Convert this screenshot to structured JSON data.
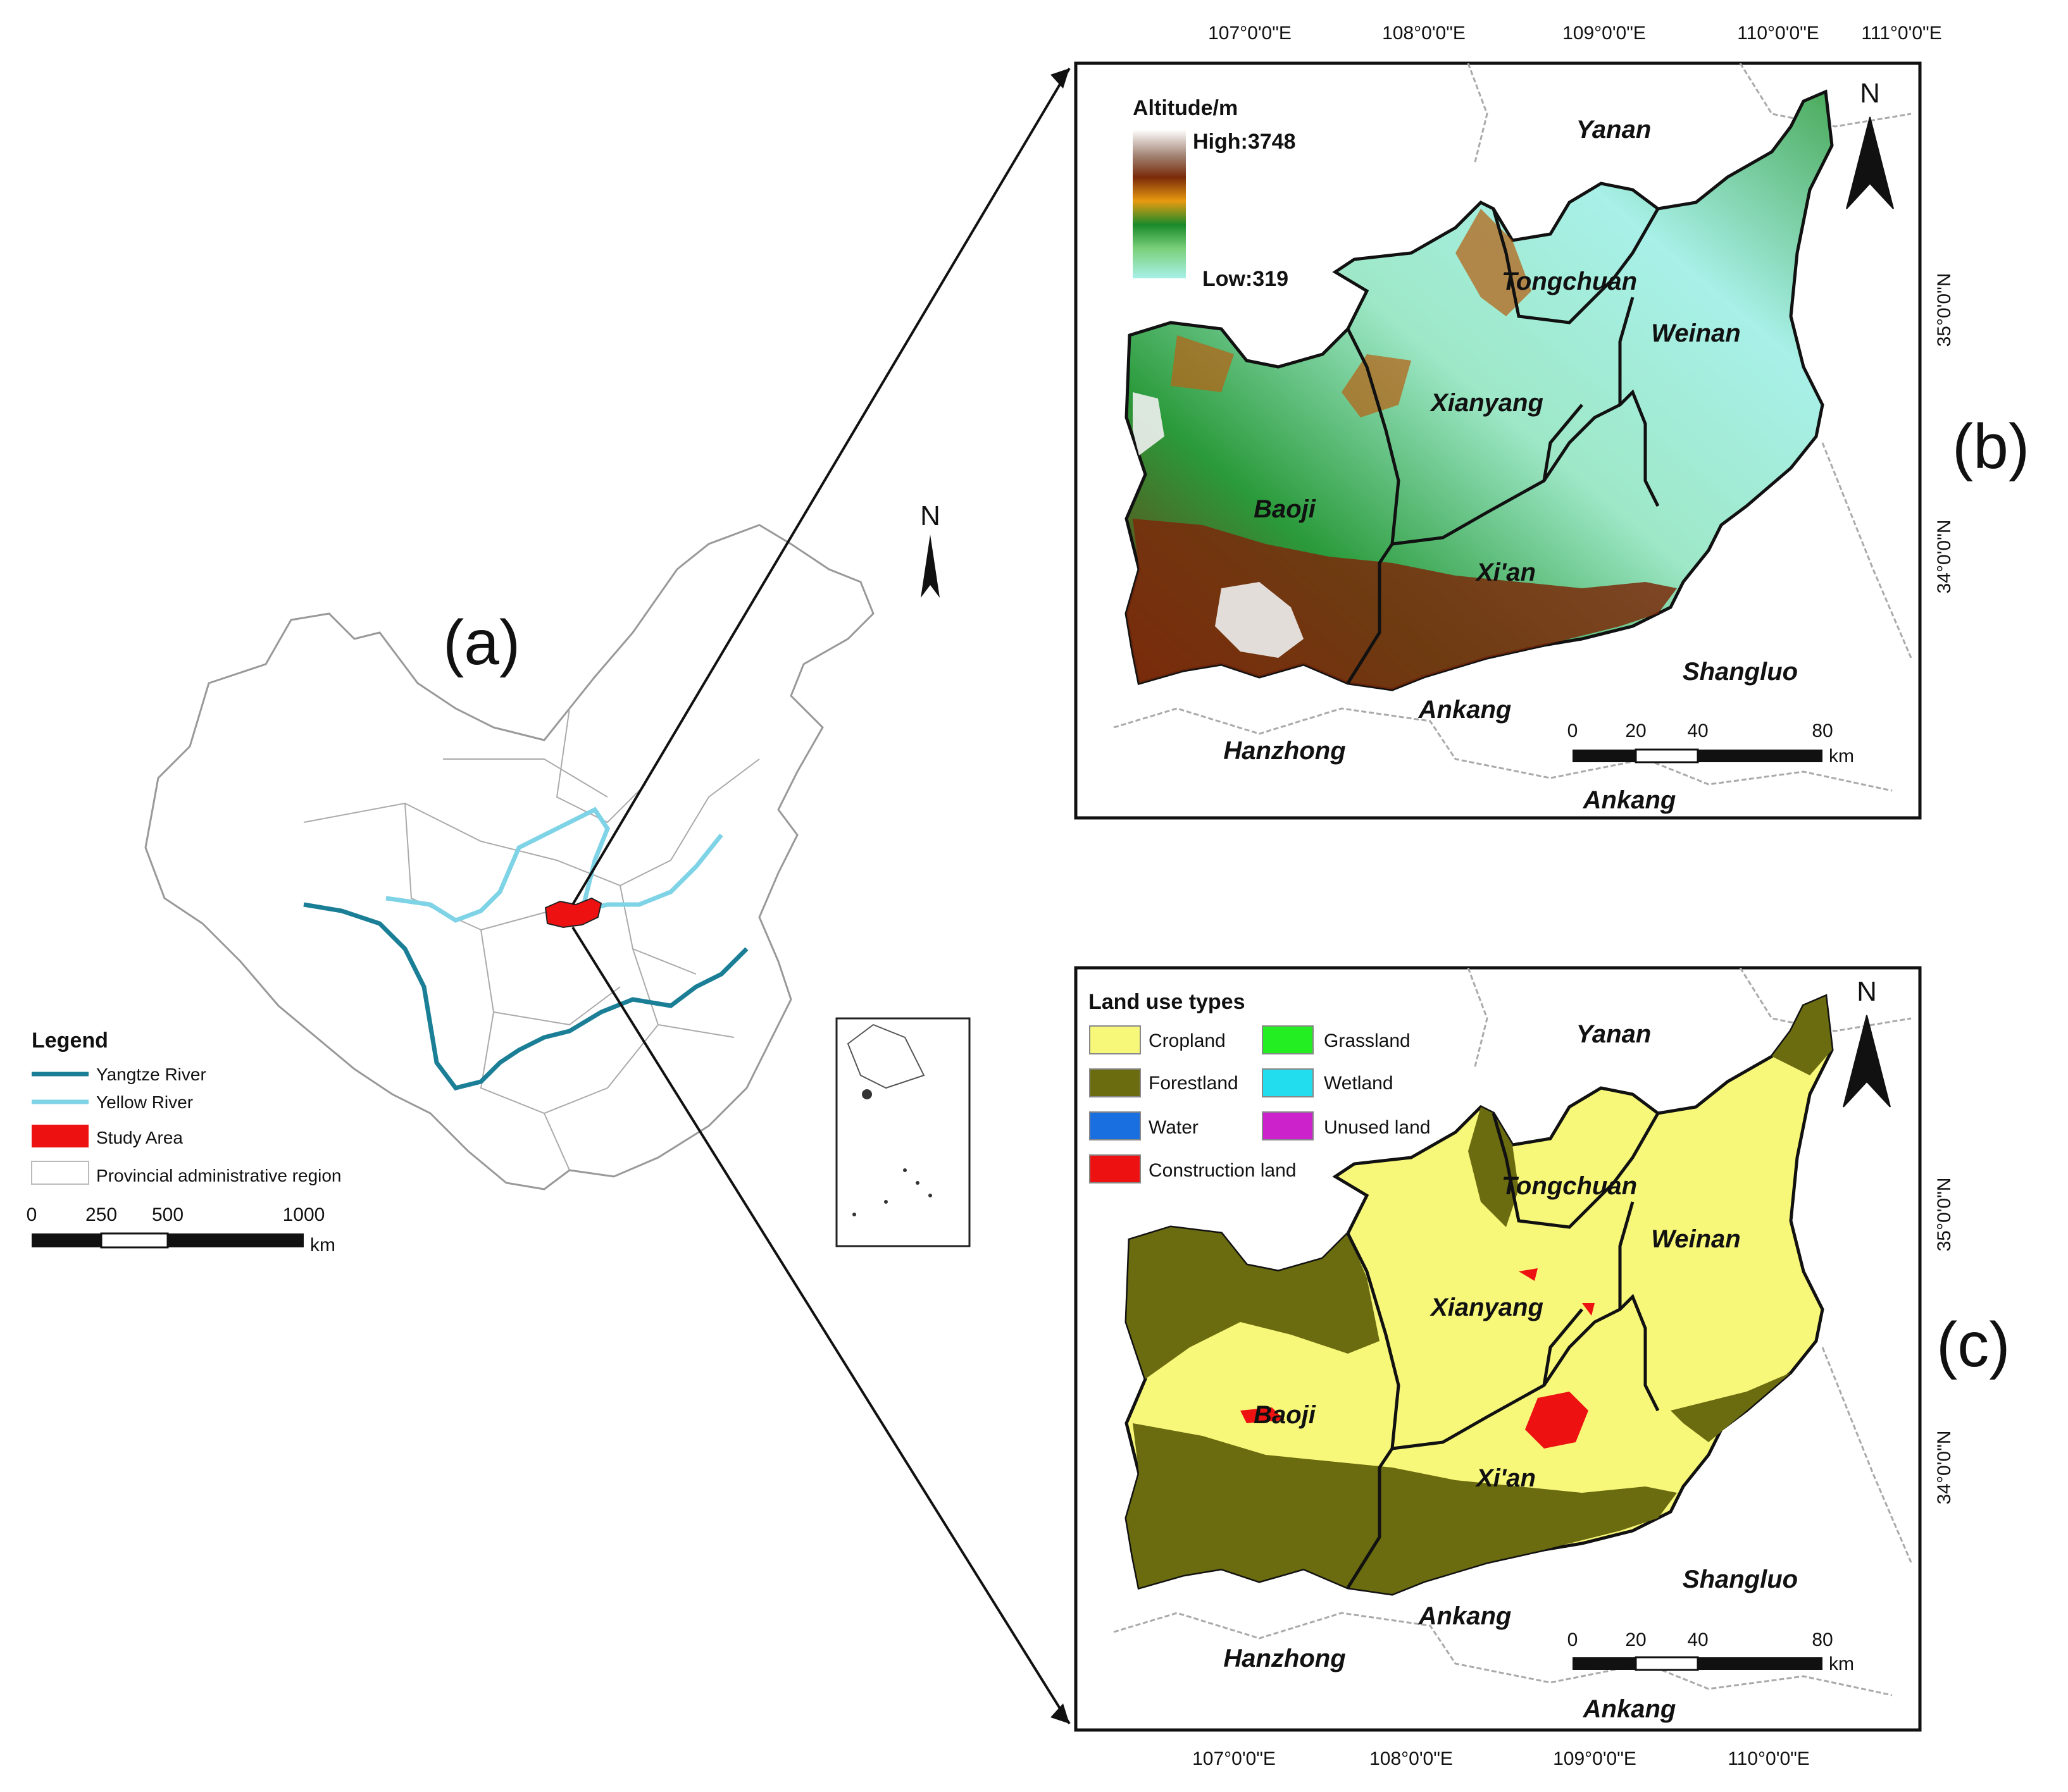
{
  "panels": {
    "a": "(a)",
    "b": "(b)",
    "c": "(c)"
  },
  "map_a": {
    "legend": {
      "title": "Legend",
      "items": [
        {
          "label": "Yangtze River",
          "color": "#1a7f96"
        },
        {
          "label": "Yellow River",
          "color": "#7fd3e6"
        },
        {
          "label": "Study Area",
          "color": "#ee1111"
        },
        {
          "label": "Provincial administrative region",
          "color": "#999999"
        }
      ]
    },
    "scale": {
      "ticks": [
        "0",
        "250",
        "500",
        "1000"
      ],
      "unit": "km"
    },
    "north": "N"
  },
  "map_b": {
    "legend": {
      "title": "Altitude/m",
      "high": "High:3748",
      "low": "Low:319"
    },
    "north": "N",
    "cities": {
      "yanan": "Yanan",
      "tongchuan": "Tongchuan",
      "weinan": "Weinan",
      "xianyang": "Xianyang",
      "baoji": "Baoji",
      "xian": "Xi'an",
      "shangluo": "Shangluo",
      "ankang1": "Ankang",
      "ankang2": "Ankang",
      "hanzhong": "Hanzhong"
    },
    "lon_ticks": [
      "107°0'0\"E",
      "108°0'0\"E",
      "109°0'0\"E",
      "110°0'0\"E",
      "111°0'0\"E"
    ],
    "lat_ticks": [
      "35°0'0\"N",
      "34°0'0\"N"
    ],
    "scale": {
      "ticks": [
        "0",
        "20",
        "40",
        "80"
      ],
      "unit": "km"
    }
  },
  "map_c": {
    "legend": {
      "title": "Land use types",
      "items": [
        {
          "label": "Cropland",
          "color": "#f7f77a"
        },
        {
          "label": "Grassland",
          "color": "#22ee22"
        },
        {
          "label": "Forestland",
          "color": "#6b6b10"
        },
        {
          "label": "Wetland",
          "color": "#22ddee"
        },
        {
          "label": "Water",
          "color": "#1a6fe0"
        },
        {
          "label": "Unused land",
          "color": "#cc22cc"
        },
        {
          "label": "Construction land",
          "color": "#ee1111"
        }
      ]
    },
    "north": "N",
    "cities": {
      "yanan": "Yanan",
      "tongchuan": "Tongchuan",
      "weinan": "Weinan",
      "xianyang": "Xianyang",
      "baoji": "Baoji",
      "xian": "Xi'an",
      "shangluo": "Shangluo",
      "ankang1": "Ankang",
      "ankang2": "Ankang",
      "hanzhong": "Hanzhong"
    },
    "lon_ticks": [
      "107°0'0\"E",
      "108°0'0\"E",
      "109°0'0\"E",
      "110°0'0\"E"
    ],
    "lat_ticks": [
      "35°0'0\"N",
      "34°0'0\"N"
    ],
    "scale": {
      "ticks": [
        "0",
        "20",
        "40",
        "80"
      ],
      "unit": "km"
    }
  }
}
